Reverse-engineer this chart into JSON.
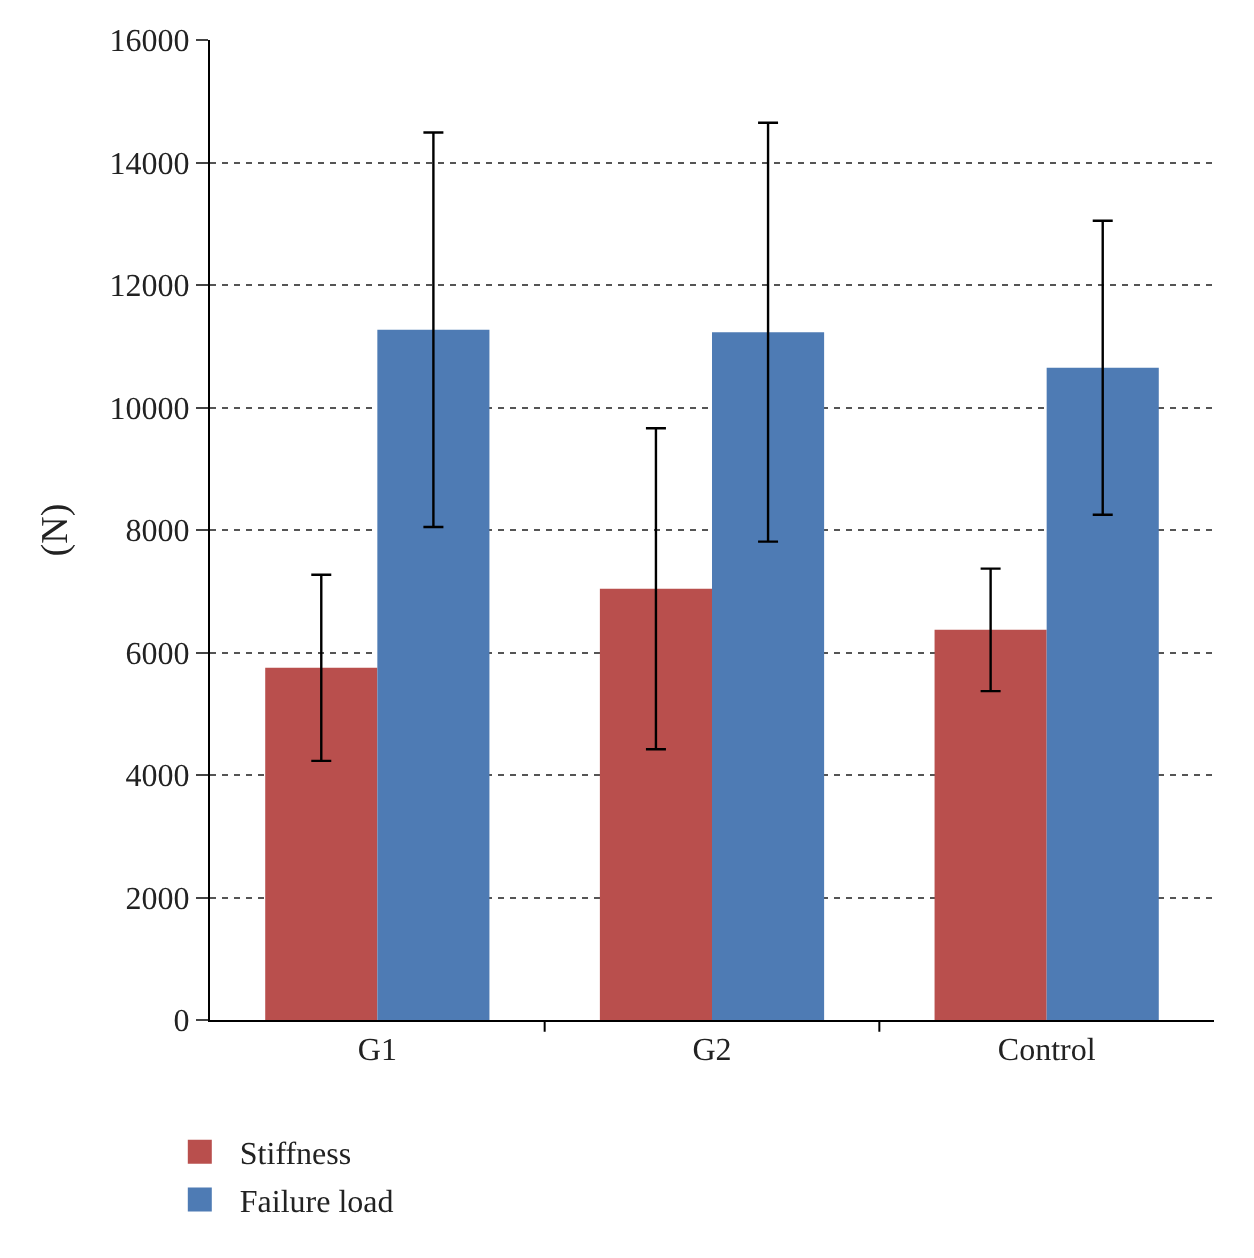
{
  "chart_data": {
    "type": "bar",
    "ylabel": "(N)",
    "categories": [
      "G1",
      "G2",
      "Control"
    ],
    "series": [
      {
        "name": "Stiffness",
        "color": "#b94f4d",
        "values": [
          5750,
          7040,
          6370
        ],
        "errors": [
          1520,
          2620,
          1000
        ]
      },
      {
        "name": "Failure load",
        "color": "#4e7bb4",
        "values": [
          11270,
          11230,
          10650
        ],
        "errors": [
          3220,
          3420,
          2400
        ]
      }
    ],
    "ylim": [
      0,
      16000
    ],
    "yticks": [
      0,
      2000,
      4000,
      6000,
      8000,
      10000,
      12000,
      14000,
      16000
    ],
    "grid": "y",
    "legend": "bottom left"
  }
}
